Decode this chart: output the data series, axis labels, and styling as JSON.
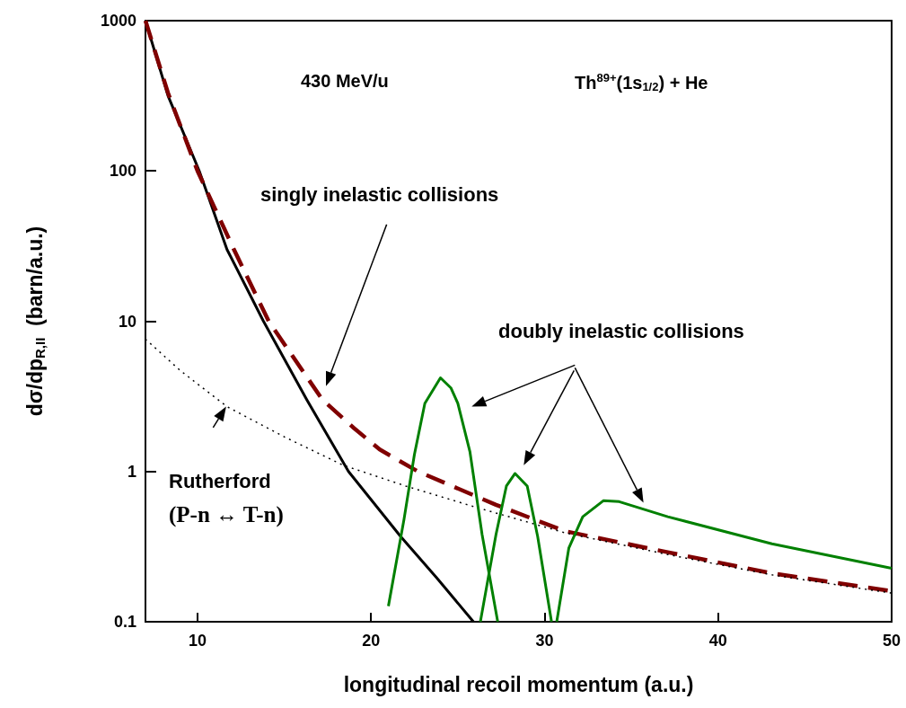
{
  "chart_data": {
    "type": "line",
    "xlabel": "longitudinal recoil momentum (a.u.)",
    "ylabel": "dσ/dp$_{R,II}$  (barn/a.u.)",
    "annotations": [
      "430 MeV/u",
      "Th$^{89+}$(1s$_{1/2}$) + He",
      "singly inelastic collisions",
      "doubly inelastic collisions",
      "Rutherford",
      "(P-n ↔ T-n)"
    ],
    "series": [
      {
        "color": "#000000",
        "line_style": "solid",
        "x": [
          7,
          8.3,
          10.1,
          11.7,
          13.8,
          16.3,
          18.7,
          21.7,
          23.8,
          25.9
        ],
        "values": [
          1000,
          316,
          100,
          30,
          10,
          3,
          1,
          0.37,
          0.195,
          0.1
        ]
      },
      {
        "color": "#800000",
        "line_style": "dashed",
        "x": [
          7,
          8.3,
          10,
          12.1,
          14.1,
          17.2,
          19,
          20.5,
          22.7,
          27.2,
          31.2,
          37.1,
          43.1,
          50
        ],
        "values": [
          1000,
          330,
          100,
          30,
          10,
          3,
          1.95,
          1.4,
          1,
          0.6,
          0.4,
          0.29,
          0.21,
          0.16
        ]
      },
      {
        "color": "#000000",
        "line_style": "dotted",
        "x": [
          7,
          9,
          11.7,
          15,
          18.4,
          22,
          26,
          31.2,
          37.1,
          43.1,
          50
        ],
        "values": [
          7.6,
          4.7,
          2.7,
          1.7,
          1.1,
          0.8,
          0.58,
          0.39,
          0.28,
          0.205,
          0.155
        ]
      },
      {
        "color": "#008000",
        "line_style": "solid",
        "x": [
          21,
          21.9,
          22.5,
          23.1,
          24,
          24.6,
          25,
          25.7,
          26.4,
          27.3
        ],
        "values": [
          0.127,
          0.48,
          1.3,
          2.84,
          4.2,
          3.6,
          2.84,
          1.35,
          0.38,
          0.1
        ]
      },
      {
        "color": "#008000",
        "line_style": "solid",
        "x": [
          26.3,
          27.2,
          27.8,
          28.3,
          29,
          29.6,
          30.4
        ],
        "values": [
          0.1,
          0.38,
          0.8,
          0.97,
          0.8,
          0.37,
          0.1
        ]
      },
      {
        "color": "#008000",
        "line_style": "solid",
        "x": [
          30.7,
          31.4,
          32.2,
          33.4,
          34.3,
          37.1,
          43.1,
          50
        ],
        "values": [
          0.1,
          0.31,
          0.5,
          0.64,
          0.63,
          0.5,
          0.33,
          0.227
        ]
      }
    ],
    "xlim": [
      7,
      50
    ],
    "xticks": [
      10,
      20,
      30,
      40,
      50
    ],
    "ylim": [
      0.1,
      1000
    ],
    "yticks": [
      0.1,
      1,
      10,
      100,
      1000
    ],
    "log": "y",
    "marker": "none"
  }
}
